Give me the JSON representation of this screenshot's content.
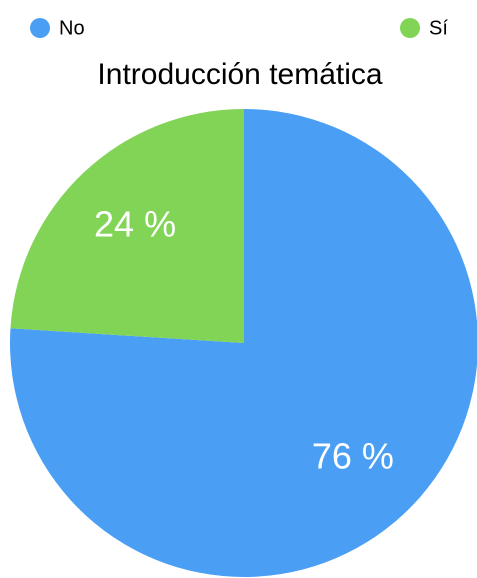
{
  "chart_data": {
    "type": "pie",
    "title": "Introducción temática",
    "categories": [
      "No",
      "Sí"
    ],
    "values": [
      76,
      24
    ],
    "value_labels": [
      "76 %",
      "24 %"
    ],
    "colors": [
      "#4a9ff5",
      "#82d457"
    ]
  }
}
